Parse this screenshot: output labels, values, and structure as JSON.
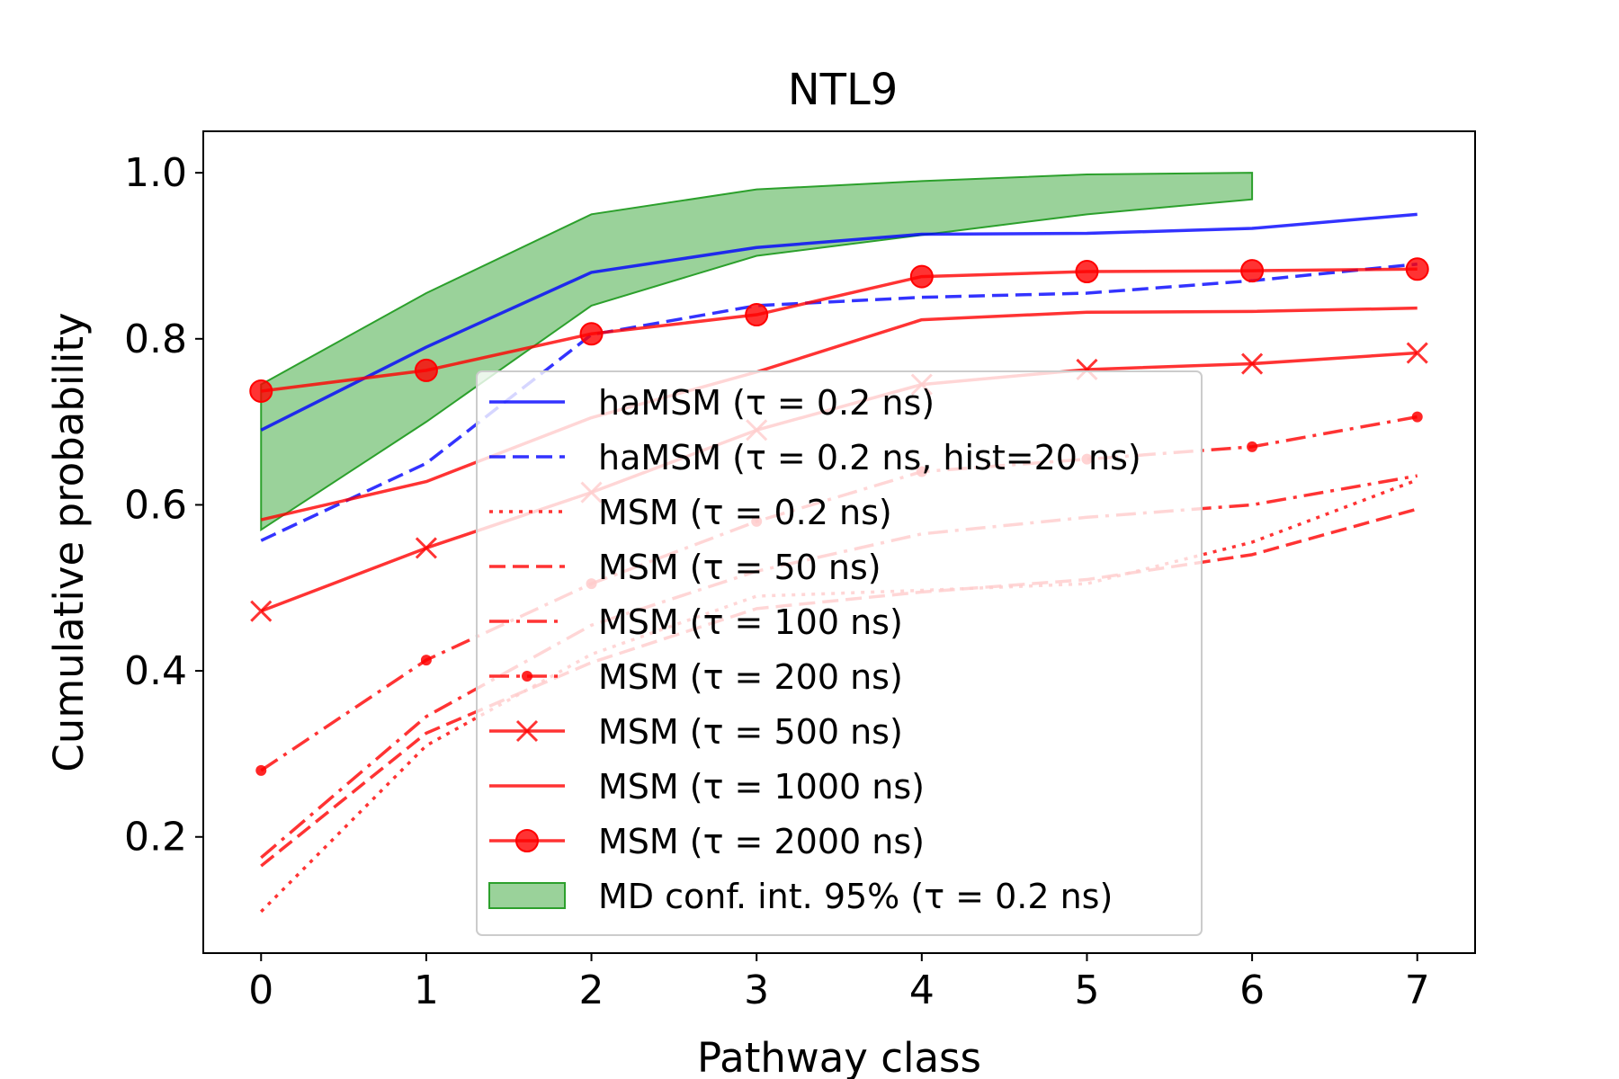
{
  "chart_data": {
    "type": "line",
    "title": "NTL9",
    "xlabel": "Pathway class",
    "ylabel": "Cumulative probability",
    "xlim": [
      -0.35,
      7.35
    ],
    "ylim": [
      0.06,
      1.05
    ],
    "x": [
      0,
      1,
      2,
      3,
      4,
      5,
      6,
      7
    ],
    "xticks": [
      "0",
      "1",
      "2",
      "3",
      "4",
      "5",
      "6",
      "7"
    ],
    "yticks": [
      "0.2",
      "0.4",
      "0.6",
      "0.8",
      "1.0"
    ],
    "ytick_values": [
      0.2,
      0.4,
      0.6,
      0.8,
      1.0
    ],
    "grid": false,
    "legend_position": "center-right",
    "band": {
      "name": "MD conf. int. 95% (τ = 0.2 ns)",
      "color": "#2ca02c",
      "x": [
        0,
        1,
        2,
        3,
        4,
        5,
        6
      ],
      "upper": [
        0.745,
        0.855,
        0.95,
        0.98,
        0.99,
        0.998,
        1.0
      ],
      "lower": [
        0.57,
        0.7,
        0.84,
        0.9,
        0.925,
        0.95,
        0.968
      ]
    },
    "series": [
      {
        "name": "haMSM (τ = 0.2 ns)",
        "color": "#0000ff",
        "dash": "solid",
        "marker": "none",
        "values": [
          0.69,
          0.79,
          0.88,
          0.91,
          0.926,
          0.927,
          0.933,
          0.95
        ]
      },
      {
        "name": "haMSM (τ = 0.2 ns, hist=20 ns)",
        "color": "#0000ff",
        "dash": "dashed",
        "marker": "none",
        "values": [
          0.557,
          0.65,
          0.805,
          0.84,
          0.85,
          0.855,
          0.87,
          0.89
        ]
      },
      {
        "name": "MSM (τ = 0.2 ns)",
        "color": "#ff0000",
        "dash": "dotted",
        "marker": "none",
        "values": [
          0.11,
          0.31,
          0.42,
          0.49,
          0.497,
          0.505,
          0.555,
          0.63
        ]
      },
      {
        "name": "MSM (τ = 50 ns)",
        "color": "#ff0000",
        "dash": "dashed",
        "marker": "none",
        "values": [
          0.165,
          0.325,
          0.41,
          0.475,
          0.495,
          0.51,
          0.54,
          0.595
        ]
      },
      {
        "name": "MSM (τ = 100 ns)",
        "color": "#ff0000",
        "dash": "dashdot",
        "marker": "none",
        "values": [
          0.175,
          0.345,
          0.455,
          0.52,
          0.565,
          0.585,
          0.6,
          0.635
        ]
      },
      {
        "name": "MSM (τ = 200 ns)",
        "color": "#ff0000",
        "dash": "dashdot",
        "marker": "dot",
        "values": [
          0.28,
          0.413,
          0.505,
          0.58,
          0.64,
          0.655,
          0.67,
          0.706
        ]
      },
      {
        "name": "MSM (τ = 500 ns)",
        "color": "#ff0000",
        "dash": "solid",
        "marker": "x",
        "values": [
          0.472,
          0.548,
          0.615,
          0.69,
          0.745,
          0.763,
          0.77,
          0.783
        ]
      },
      {
        "name": "MSM (τ = 1000 ns)",
        "color": "#ff0000",
        "dash": "solid",
        "marker": "none",
        "values": [
          0.582,
          0.628,
          0.705,
          0.76,
          0.823,
          0.832,
          0.833,
          0.837
        ]
      },
      {
        "name": "MSM (τ = 2000 ns)",
        "color": "#ff0000",
        "dash": "solid",
        "marker": "circle",
        "values": [
          0.737,
          0.762,
          0.806,
          0.829,
          0.875,
          0.881,
          0.882,
          0.884
        ]
      }
    ]
  }
}
